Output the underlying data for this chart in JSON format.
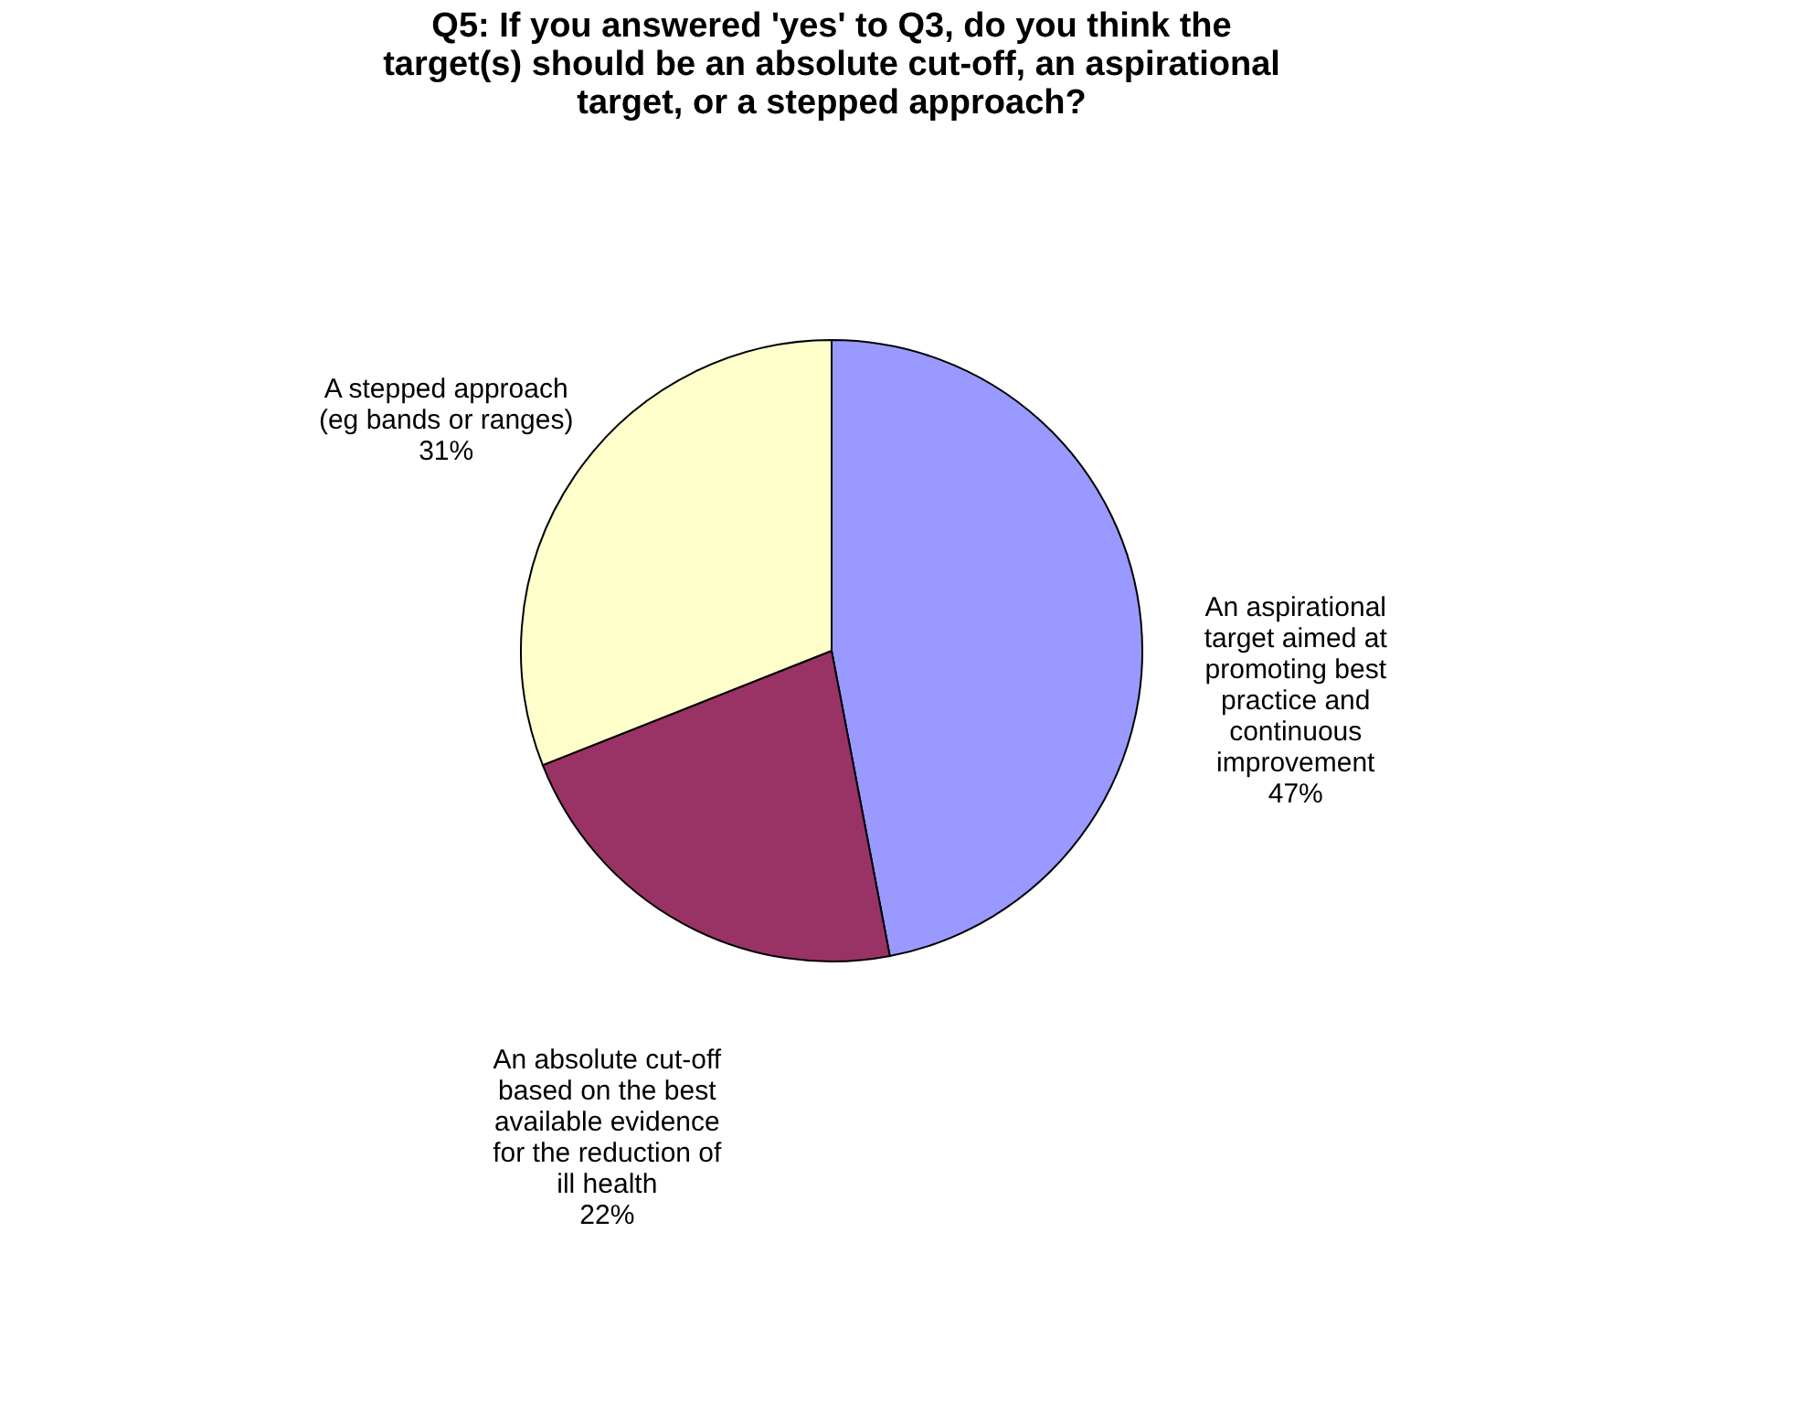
{
  "chart_data": {
    "type": "pie",
    "title": "Q5: If you answered 'yes' to Q3, do you think the target(s) should be an absolute cut-off, an aspirational target, or a stepped approach?",
    "categories": [
      "An aspirational target aimed at promoting best practice and continuous improvement",
      "An absolute cut-off based on the best available evidence for the reduction of ill health",
      "A stepped approach (eg bands or ranges)"
    ],
    "values": [
      47,
      22,
      31
    ],
    "value_labels": [
      "47%",
      "22%",
      "31%"
    ],
    "colors": [
      "#9999ff",
      "#993366",
      "#ffffcc"
    ]
  }
}
